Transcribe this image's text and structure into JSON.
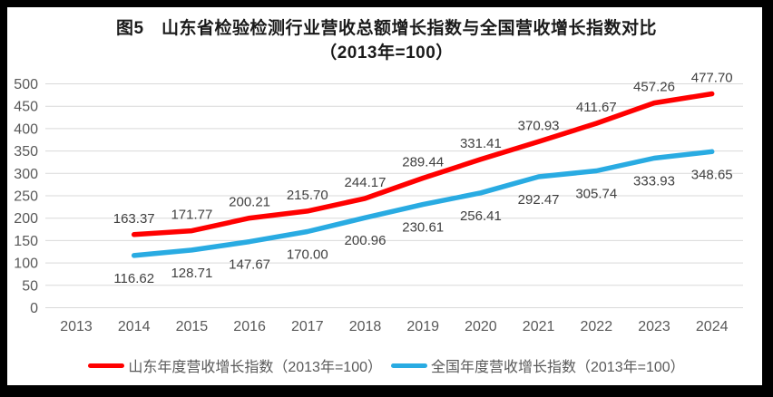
{
  "chart_data": {
    "type": "line",
    "title": "图5　山东省检验检测行业营收总额增长指数与全国营收增长指数对比",
    "subtitle": "（2013年=100）",
    "xlabel": "",
    "ylabel": "",
    "categories": [
      "2013",
      "2014",
      "2015",
      "2016",
      "2017",
      "2018",
      "2019",
      "2020",
      "2021",
      "2022",
      "2023",
      "2024"
    ],
    "series": [
      {
        "name": "山东年度营收增长指数（2013年=100）",
        "color": "#FF0000",
        "label_position": "above",
        "values": [
          null,
          163.37,
          171.77,
          200.21,
          215.7,
          244.17,
          289.44,
          331.41,
          370.93,
          411.67,
          457.26,
          477.7
        ]
      },
      {
        "name": "全国年度营收增长指数（2013年=100）",
        "color": "#29ABE2",
        "label_position": "below",
        "values": [
          null,
          116.62,
          128.71,
          147.67,
          170.0,
          200.96,
          230.61,
          256.41,
          292.47,
          305.74,
          333.93,
          348.65
        ]
      }
    ],
    "ylim": [
      0,
      500
    ],
    "ytick_step": 50,
    "grid": "horizontal-only",
    "legend_position": "bottom",
    "data_label_decimals": 2
  },
  "colors": {
    "frame": "#000000",
    "background": "#FFFFFF",
    "gridline": "#D9D9D9",
    "tick_label": "#595959",
    "data_label": "#404040",
    "title": "#1A1A1A"
  }
}
